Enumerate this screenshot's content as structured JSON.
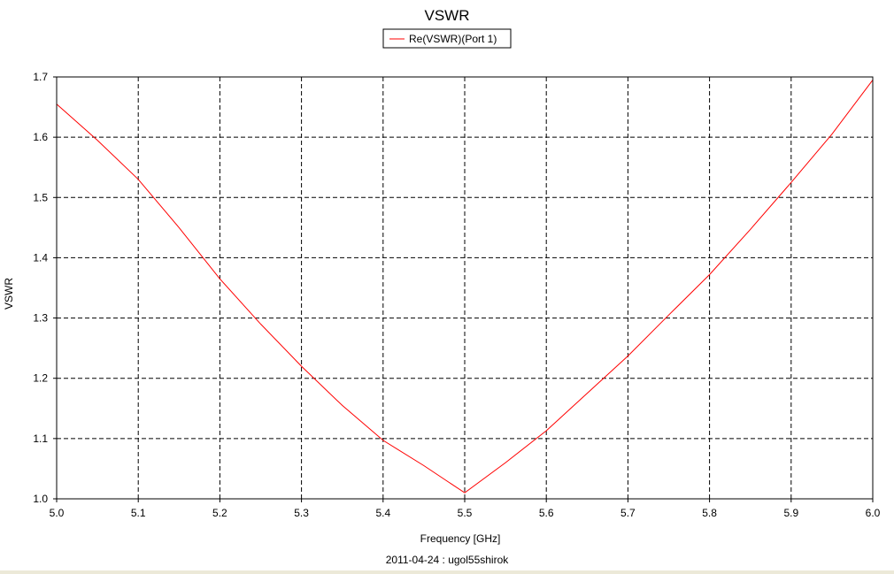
{
  "chart_data": {
    "type": "line",
    "title": "VSWR",
    "xlabel": "Frequency [GHz]",
    "ylabel": "VSWR",
    "footer": "2011-04-24 : ugol55shirok",
    "xlim": [
      5.0,
      6.0
    ],
    "ylim": [
      1.0,
      1.7
    ],
    "xticks": [
      "5.0",
      "5.1",
      "5.2",
      "5.3",
      "5.4",
      "5.5",
      "5.6",
      "5.7",
      "5.8",
      "5.9",
      "6.0"
    ],
    "yticks": [
      "1.0",
      "1.1",
      "1.2",
      "1.3",
      "1.4",
      "1.5",
      "1.6",
      "1.7"
    ],
    "grid": true,
    "legend_position": "top-center",
    "series": [
      {
        "name": "Re(VSWR)(Port 1)",
        "color": "#ff0000",
        "x": [
          5.0,
          5.05,
          5.1,
          5.15,
          5.2,
          5.25,
          5.3,
          5.35,
          5.4,
          5.45,
          5.5,
          5.55,
          5.6,
          5.65,
          5.7,
          5.75,
          5.8,
          5.85,
          5.9,
          5.95,
          6.0
        ],
        "y": [
          1.655,
          1.595,
          1.53,
          1.45,
          1.365,
          1.29,
          1.22,
          1.155,
          1.097,
          1.055,
          1.01,
          1.06,
          1.113,
          1.175,
          1.237,
          1.305,
          1.372,
          1.447,
          1.525,
          1.605,
          1.695
        ]
      }
    ]
  }
}
